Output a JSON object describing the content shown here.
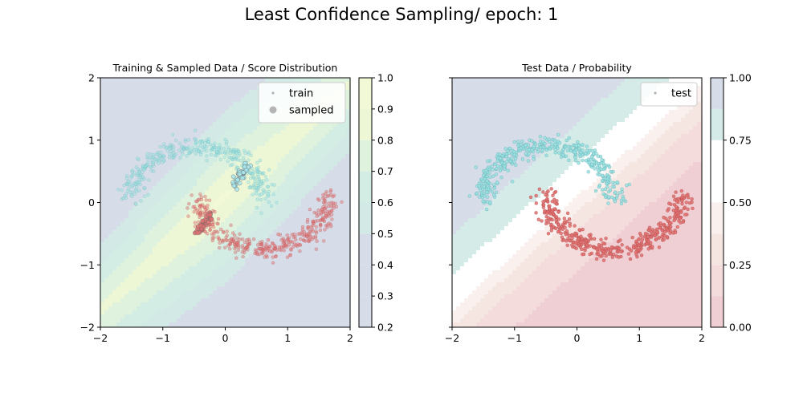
{
  "suptitle": "Least Confidence Sampling/ epoch: 1",
  "chart_data": [
    {
      "type": "scatter",
      "title": "Training & Sampled Data / Score Distribution",
      "xlim": [
        -2,
        2
      ],
      "ylim": [
        -2,
        2
      ],
      "xticks": [
        "−2",
        "−1",
        "0",
        "1",
        "2"
      ],
      "yticks": [
        "−2",
        "−1",
        "0",
        "1",
        "2"
      ],
      "legend": [
        "train",
        "sampled"
      ],
      "legend_placement": "top-right",
      "background": "filled contour of score",
      "colorbar": {
        "min": 0.2,
        "max": 1.0,
        "levels": [
          0.2,
          0.3,
          0.4,
          0.5,
          0.6,
          0.7,
          0.8,
          0.9,
          1.0
        ],
        "ticks": [
          "0.2",
          "0.3",
          "0.4",
          "0.5",
          "0.6",
          "0.7",
          "0.8",
          "0.9",
          "1.0"
        ],
        "colors": [
          "#d6dce8",
          "#d6dce8",
          "#d6dce8",
          "#d2e9e6",
          "#d4ede4",
          "#def2de",
          "#edf7d6",
          "#f1f9d6"
        ]
      },
      "classes": [
        {
          "color": "#9be0e0",
          "edge": "#5aaab0"
        },
        {
          "color": "#e07070",
          "edge": "#b04848"
        }
      ],
      "sampled": [
        {
          "x": [
            0.12,
            0.35
          ],
          "y": [
            0.25,
            0.6
          ],
          "color": "#a8e6ec"
        },
        {
          "x": [
            -0.45,
            -0.22
          ],
          "y": [
            -0.5,
            -0.18
          ],
          "color": "#e07070"
        }
      ],
      "grid": false
    },
    {
      "type": "scatter",
      "title": "Test Data / Probability",
      "xlim": [
        -2,
        2
      ],
      "ylim": [
        -2,
        2
      ],
      "xticks": [
        "−2",
        "−1",
        "0",
        "1",
        "2"
      ],
      "legend": [
        "test"
      ],
      "legend_placement": "top-right",
      "background": "filled contour of probability",
      "colorbar": {
        "min": 0.0,
        "max": 1.0,
        "levels": [
          0.0,
          0.125,
          0.25,
          0.375,
          0.5,
          0.625,
          0.75,
          0.875,
          1.0
        ],
        "ticks": [
          "0.00",
          "0.25",
          "0.50",
          "0.75",
          "1.00"
        ],
        "colors": [
          "#efcfd3",
          "#f3dcdb",
          "#f6e6e2",
          "#faf1ee",
          "#ffffff",
          "#ffffff",
          "#d4ebe8",
          "#d6dce8"
        ]
      },
      "classes": [
        {
          "color": "#9be0e0",
          "edge": "#5aaab0"
        },
        {
          "color": "#e07070",
          "edge": "#b04848"
        }
      ],
      "grid": false
    }
  ]
}
